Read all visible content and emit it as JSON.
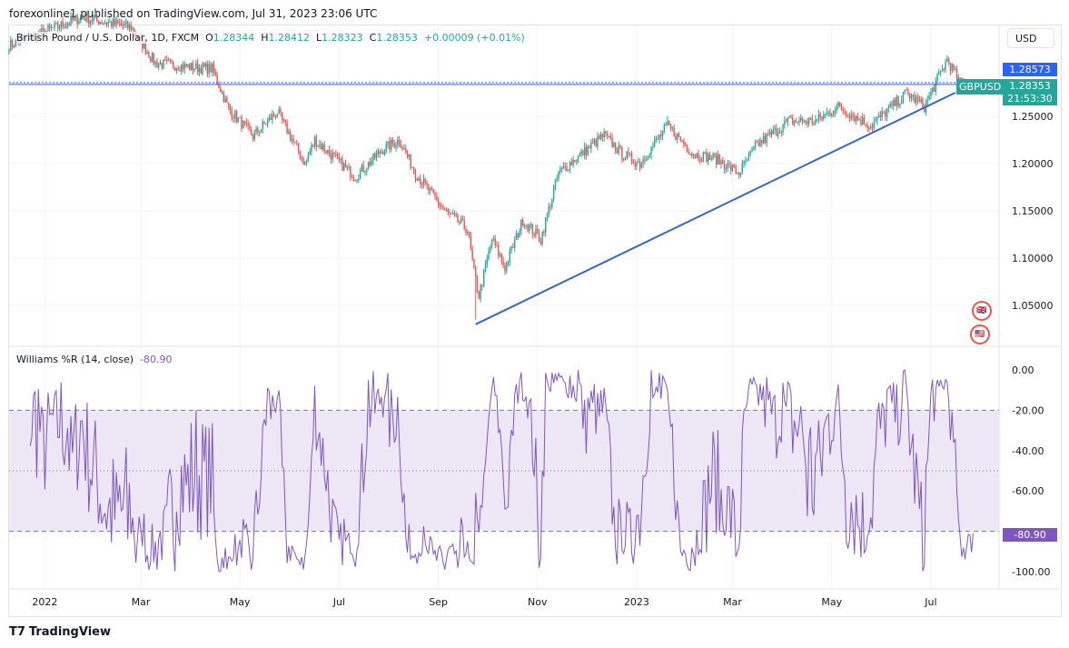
{
  "header": {
    "published": "forexonline1 published on TradingView.com, Jul 31, 2023 23:06 UTC"
  },
  "legend": {
    "symbol": "British Pound / U.S. Dollar, 1D, FXCM",
    "o_label": "O",
    "o": "1.28344",
    "h_label": "H",
    "h": "1.28412",
    "l_label": "L",
    "l": "1.28323",
    "c_label": "C",
    "c": "1.28353",
    "change": "+0.00009 (+0.01%)"
  },
  "currency_button": "USD",
  "price_tags": {
    "prev": "1.28573",
    "symbol": "GBPUSD",
    "last": "1.28353",
    "countdown": "21:53:30"
  },
  "indicator": {
    "title": "Williams %R (14, close)",
    "value": "-80.90"
  },
  "footer": {
    "brand": "TradingView"
  },
  "colors": {
    "up": "#26a69a",
    "down": "#ef5350",
    "trend": "#3a66c4",
    "wr": "#7e57c2",
    "band": "#ede7f6"
  },
  "chart_data": {
    "type": "candlestick",
    "price_ticks": [
      "1.25000",
      "1.20000",
      "1.15000",
      "1.10000",
      "1.05000"
    ],
    "price_tick_values": [
      1.25,
      1.2,
      1.15,
      1.1,
      1.05
    ],
    "wr_ticks": [
      "0.00",
      "-20.00",
      "-40.00",
      "-60.00",
      "-100.00"
    ],
    "wr_tick_values": [
      0,
      -20,
      -40,
      -60,
      -100
    ],
    "wr_band": [
      -20,
      -80
    ],
    "wr_mid": -50,
    "x_labels": [
      "2022",
      "Mar",
      "May",
      "Jul",
      "Sep",
      "Nov",
      "2023",
      "Mar",
      "May",
      "Jul"
    ],
    "x_label_days": [
      22,
      81,
      142,
      203,
      264,
      325,
      386,
      445,
      506,
      567
    ],
    "close_waypoints_by_day": [
      [
        0,
        1.325
      ],
      [
        45,
        1.355
      ],
      [
        75,
        1.344
      ],
      [
        90,
        1.306
      ],
      [
        125,
        1.3
      ],
      [
        135,
        1.258
      ],
      [
        150,
        1.229
      ],
      [
        165,
        1.255
      ],
      [
        182,
        1.2
      ],
      [
        188,
        1.225
      ],
      [
        213,
        1.186
      ],
      [
        230,
        1.215
      ],
      [
        240,
        1.225
      ],
      [
        250,
        1.19
      ],
      [
        268,
        1.15
      ],
      [
        282,
        1.13
      ],
      [
        286,
        1.085
      ],
      [
        289,
        1.06
      ],
      [
        297,
        1.12
      ],
      [
        305,
        1.09
      ],
      [
        316,
        1.14
      ],
      [
        327,
        1.12
      ],
      [
        338,
        1.19
      ],
      [
        352,
        1.21
      ],
      [
        366,
        1.23
      ],
      [
        377,
        1.21
      ],
      [
        388,
        1.2
      ],
      [
        405,
        1.24
      ],
      [
        421,
        1.21
      ],
      [
        435,
        1.205
      ],
      [
        449,
        1.19
      ],
      [
        460,
        1.22
      ],
      [
        480,
        1.245
      ],
      [
        496,
        1.245
      ],
      [
        510,
        1.26
      ],
      [
        530,
        1.24
      ],
      [
        546,
        1.265
      ],
      [
        552,
        1.275
      ],
      [
        563,
        1.26
      ],
      [
        577,
        1.31
      ],
      [
        585,
        1.285
      ],
      [
        593,
        1.2835
      ]
    ],
    "low_wick": {
      "day": 287,
      "price": 1.035
    },
    "trendline": [
      [
        287,
        1.03
      ],
      [
        582,
        1.275
      ]
    ],
    "hline": 1.2857
  }
}
